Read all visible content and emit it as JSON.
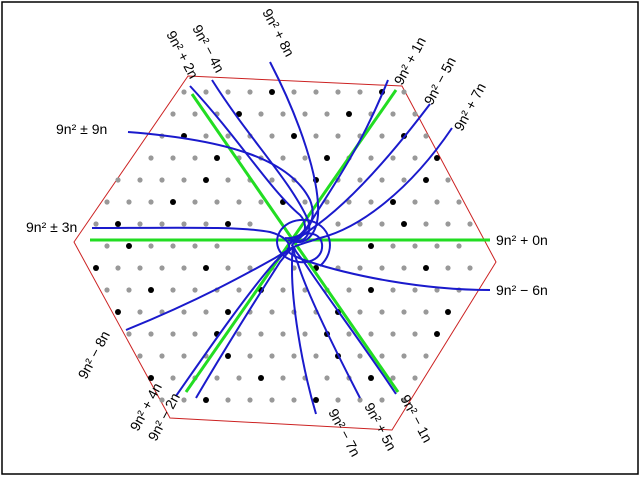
{
  "colors": {
    "hexagon": "#cc2222",
    "spiral": "#1a1acc",
    "axis": "#22dd22",
    "dot_black": "#000000",
    "dot_grey": "#999999",
    "border": "#000000"
  },
  "labels": {
    "l_9n2_pm_9n": "9n² ± 9n",
    "l_9n2_pm_3n": "9n² ± 3n",
    "l_9n2_p2n": "9n² + 2n",
    "l_9n2_m4n": "9n² − 4n",
    "l_9n2_p8n": "9n² + 8n",
    "l_9n2_p1n": "9n² + 1n",
    "l_9n2_m5n": "9n² − 5n",
    "l_9n2_p7n": "9n² + 7n",
    "l_9n2_p0n": "9n² + 0n",
    "l_9n2_m6n": "9n² − 6n",
    "l_9n2_m8n": "9n² − 8n",
    "l_9n2_p4n": "9n² + 4n",
    "l_9n2_m2n": "9n² − 2n",
    "l_9n2_m7n": "9n² − 7n",
    "l_9n2_p5n": "9n² + 5n",
    "l_9n2_m1n": "9n² − 1n"
  }
}
